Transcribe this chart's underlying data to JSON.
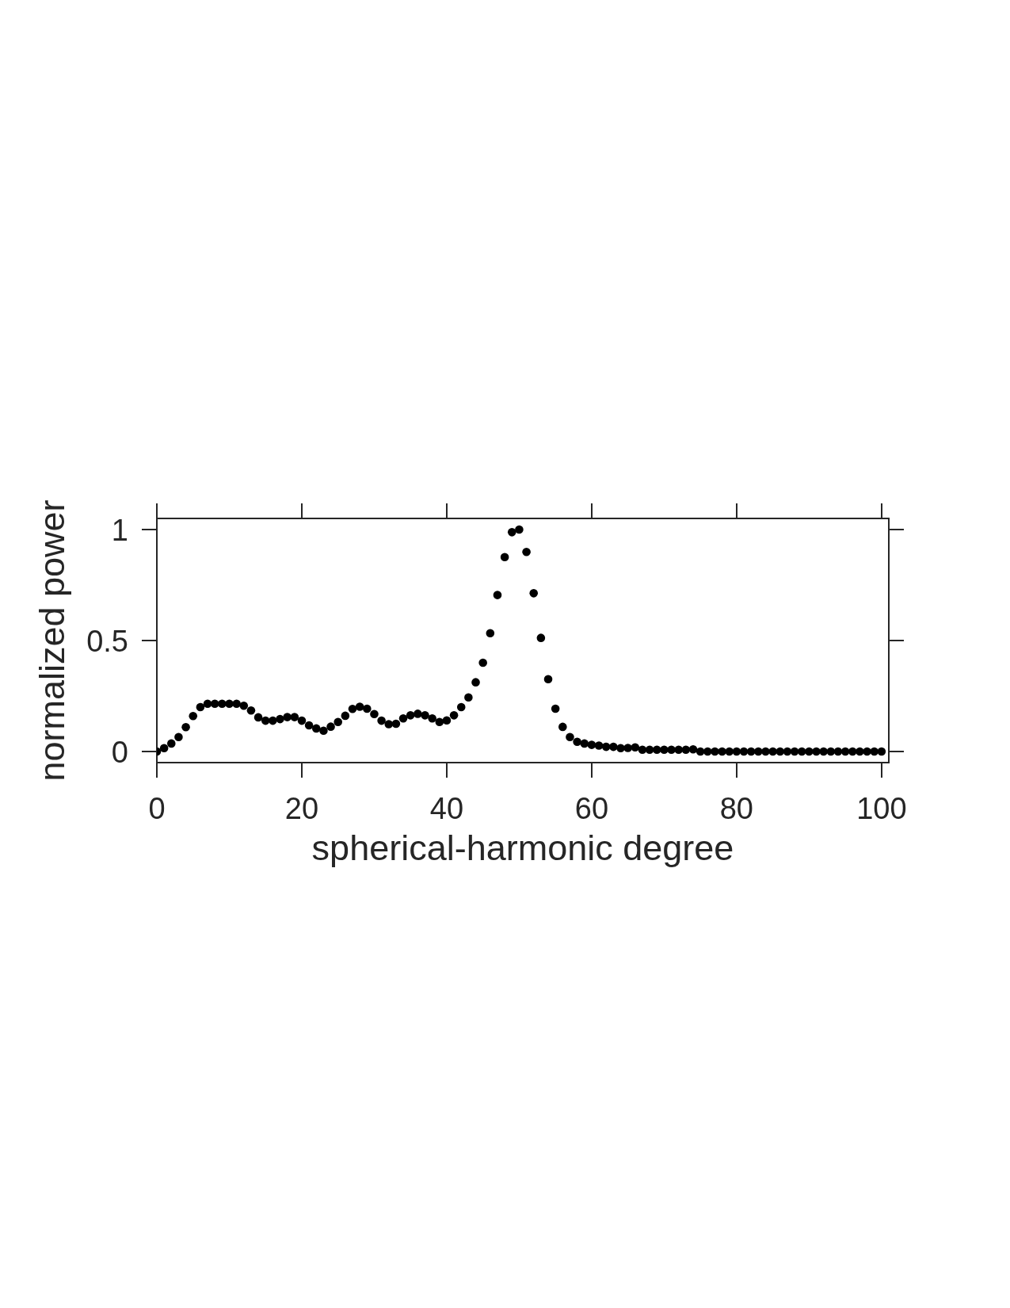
{
  "chart_data": {
    "type": "scatter",
    "xlabel": "spherical-harmonic degree",
    "ylabel": "normalized power",
    "x": [
      0,
      1,
      2,
      3,
      4,
      5,
      6,
      7,
      8,
      9,
      10,
      11,
      12,
      13,
      14,
      15,
      16,
      17,
      18,
      19,
      20,
      21,
      22,
      23,
      24,
      25,
      26,
      27,
      28,
      29,
      30,
      31,
      32,
      33,
      34,
      35,
      36,
      37,
      38,
      39,
      40,
      41,
      42,
      43,
      44,
      45,
      46,
      47,
      48,
      49,
      50,
      51,
      52,
      53,
      54,
      55,
      56,
      57,
      58,
      59,
      60,
      61,
      62,
      63,
      64,
      65,
      66,
      67,
      68,
      69,
      70,
      71,
      72,
      73,
      74,
      75,
      76,
      77,
      78,
      79,
      80,
      81,
      82,
      83,
      84,
      85,
      86,
      87,
      88,
      89,
      90,
      91,
      92,
      93,
      94,
      95,
      96,
      97,
      98,
      99,
      100
    ],
    "values": [
      0.0,
      0.015,
      0.036,
      0.065,
      0.11,
      0.16,
      0.2,
      0.215,
      0.215,
      0.215,
      0.215,
      0.215,
      0.206,
      0.185,
      0.154,
      0.139,
      0.139,
      0.146,
      0.155,
      0.155,
      0.139,
      0.118,
      0.104,
      0.094,
      0.112,
      0.133,
      0.161,
      0.192,
      0.202,
      0.193,
      0.169,
      0.139,
      0.123,
      0.125,
      0.149,
      0.163,
      0.17,
      0.163,
      0.149,
      0.133,
      0.14,
      0.163,
      0.2,
      0.244,
      0.312,
      0.4,
      0.533,
      0.705,
      0.876,
      0.988,
      1.0,
      0.899,
      0.713,
      0.512,
      0.326,
      0.193,
      0.111,
      0.065,
      0.044,
      0.036,
      0.03,
      0.027,
      0.021,
      0.021,
      0.015,
      0.016,
      0.019,
      0.008,
      0.008,
      0.008,
      0.008,
      0.008,
      0.008,
      0.008,
      0.01,
      0,
      0,
      0,
      0,
      0,
      0,
      0,
      0,
      0,
      0,
      0,
      0,
      0,
      0,
      0,
      0,
      0,
      0,
      0,
      0,
      0,
      0,
      0,
      0,
      0,
      0
    ],
    "color": "#000000",
    "marker": "circle",
    "grid": false,
    "xlim": [
      0,
      101
    ],
    "ylim": [
      -0.05,
      1.05
    ],
    "xticks": [
      0,
      20,
      40,
      60,
      80,
      100
    ],
    "yticks": [
      0,
      0.5,
      1
    ]
  }
}
